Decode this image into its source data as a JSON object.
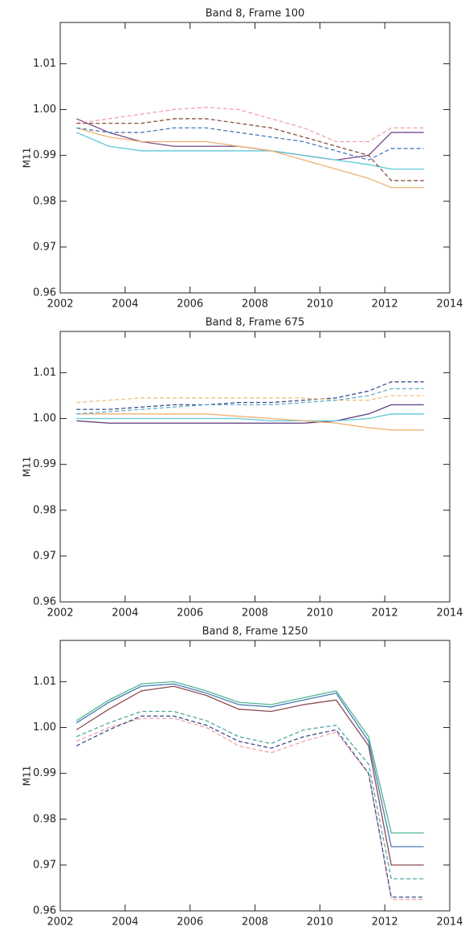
{
  "chart_data": [
    {
      "type": "line",
      "title": "Band 8, Frame  100",
      "ylabel": "M11",
      "x": [
        2002.5,
        2003.5,
        2004.5,
        2005.5,
        2006.5,
        2007.5,
        2008.5,
        2009.5,
        2010.5,
        2011.5,
        2012.2,
        2013.2
      ],
      "xlim": [
        2002,
        2014
      ],
      "xticks": [
        2002,
        2004,
        2006,
        2008,
        2010,
        2012,
        2014
      ],
      "ylim": [
        0.96,
        1.019
      ],
      "yticks": [
        0.96,
        0.97,
        0.98,
        0.99,
        {
          "value": 1.0,
          "label": "1.00"
        },
        1.01
      ],
      "series": [
        {
          "color": "#7a4a8a",
          "dashed": false,
          "values": [
            0.998,
            0.995,
            0.993,
            0.992,
            0.992,
            0.992,
            0.991,
            0.99,
            0.989,
            0.99,
            0.995,
            0.995
          ]
        },
        {
          "color": "#5ec8d8",
          "dashed": false,
          "values": [
            0.995,
            0.992,
            0.991,
            0.991,
            0.991,
            0.991,
            0.991,
            0.99,
            0.989,
            0.988,
            0.987,
            0.987
          ]
        },
        {
          "color": "#f0b070",
          "dashed": false,
          "values": [
            0.996,
            0.994,
            0.993,
            0.993,
            0.993,
            0.992,
            0.991,
            0.989,
            0.987,
            0.985,
            0.983,
            0.983
          ]
        },
        {
          "color": "#f0a0b0",
          "dashed": true,
          "values": [
            0.997,
            0.998,
            0.999,
            1.0,
            1.0005,
            1.0,
            0.998,
            0.996,
            0.993,
            0.993,
            0.996,
            0.996
          ]
        },
        {
          "color": "#8a5040",
          "dashed": true,
          "values": [
            0.997,
            0.997,
            0.997,
            0.998,
            0.998,
            0.997,
            0.996,
            0.994,
            0.992,
            0.99,
            0.9845,
            0.9845
          ]
        },
        {
          "color": "#4a7ab8",
          "dashed": true,
          "values": [
            0.996,
            0.995,
            0.995,
            0.996,
            0.996,
            0.995,
            0.994,
            0.993,
            0.991,
            0.989,
            0.9915,
            0.9915
          ]
        }
      ]
    },
    {
      "type": "line",
      "title": "Band 8, Frame  675",
      "ylabel": "M11",
      "x": [
        2002.5,
        2003.5,
        2004.5,
        2005.5,
        2006.5,
        2007.5,
        2008.5,
        2009.5,
        2010.5,
        2011.5,
        2012.2,
        2013.2
      ],
      "xlim": [
        2002,
        2014
      ],
      "xticks": [
        2002,
        2004,
        2006,
        2008,
        2010,
        2012,
        2014
      ],
      "ylim": [
        0.96,
        1.019
      ],
      "yticks": [
        0.96,
        0.97,
        0.98,
        0.99,
        {
          "value": 1.0,
          "label": "1.00"
        },
        1.01
      ],
      "series": [
        {
          "color": "#5a3a7a",
          "dashed": false,
          "values": [
            0.9995,
            0.999,
            0.999,
            0.999,
            0.999,
            0.999,
            0.999,
            0.999,
            0.9995,
            1.001,
            1.003,
            1.003
          ]
        },
        {
          "color": "#5ec8d8",
          "dashed": false,
          "values": [
            1.0,
            1.0,
            1.0,
            1.0,
            1.0,
            1.0,
            0.9995,
            0.9995,
            0.9995,
            1.0,
            1.001,
            1.001
          ]
        },
        {
          "color": "#f0b070",
          "dashed": false,
          "values": [
            1.001,
            1.001,
            1.001,
            1.001,
            1.001,
            1.0005,
            1.0,
            0.9995,
            0.999,
            0.998,
            0.9975,
            0.9975
          ]
        },
        {
          "color": "#3a4a8a",
          "dashed": true,
          "values": [
            1.002,
            1.002,
            1.0025,
            1.003,
            1.003,
            1.0035,
            1.0035,
            1.004,
            1.0045,
            1.006,
            1.008,
            1.008
          ]
        },
        {
          "color": "#f0c080",
          "dashed": true,
          "values": [
            1.0035,
            1.004,
            1.0045,
            1.0045,
            1.0045,
            1.0045,
            1.0045,
            1.0045,
            1.004,
            1.004,
            1.005,
            1.005
          ]
        },
        {
          "color": "#60b0c8",
          "dashed": true,
          "values": [
            1.001,
            1.0015,
            1.002,
            1.0025,
            1.003,
            1.003,
            1.003,
            1.0035,
            1.004,
            1.005,
            1.0065,
            1.0065
          ]
        }
      ]
    },
    {
      "type": "line",
      "title": "Band 8, Frame  1250",
      "ylabel": "M11",
      "x": [
        2002.5,
        2003.5,
        2004.5,
        2005.5,
        2006.5,
        2007.5,
        2008.5,
        2009.5,
        2010.5,
        2011.5,
        2012.2,
        2013.2
      ],
      "xlim": [
        2002,
        2014
      ],
      "xticks": [
        2002,
        2004,
        2006,
        2008,
        2010,
        2012,
        2014
      ],
      "ylim": [
        0.96,
        1.019
      ],
      "yticks": [
        0.96,
        0.97,
        0.98,
        0.99,
        {
          "value": 1.0,
          "label": "1.00"
        },
        1.01
      ],
      "series": [
        {
          "color": "#50b890",
          "dashed": false,
          "values": [
            1.0015,
            1.006,
            1.0095,
            1.01,
            1.008,
            1.0055,
            1.005,
            1.0065,
            1.008,
            0.998,
            0.977,
            0.977
          ]
        },
        {
          "color": "#4a7ab8",
          "dashed": false,
          "values": [
            1.001,
            1.0055,
            1.009,
            1.0095,
            1.0075,
            1.005,
            1.0045,
            1.006,
            1.0075,
            0.997,
            0.974,
            0.974
          ]
        },
        {
          "color": "#8a4a50",
          "dashed": false,
          "values": [
            0.9995,
            1.004,
            1.008,
            1.009,
            1.007,
            1.004,
            1.0035,
            1.005,
            1.006,
            0.996,
            0.97,
            0.97
          ]
        },
        {
          "color": "#f0a0a8",
          "dashed": true,
          "values": [
            0.997,
            1.0,
            1.002,
            1.002,
            1.0,
            0.996,
            0.9945,
            0.997,
            0.999,
            0.99,
            0.9625,
            0.9625
          ]
        },
        {
          "color": "#3a4a8a",
          "dashed": true,
          "values": [
            0.996,
            0.9995,
            1.0025,
            1.0025,
            1.0005,
            0.997,
            0.9955,
            0.998,
            0.9995,
            0.99,
            0.963,
            0.963
          ]
        },
        {
          "color": "#50a8a0",
          "dashed": true,
          "values": [
            0.998,
            1.001,
            1.0035,
            1.0035,
            1.0015,
            0.998,
            0.9965,
            0.9995,
            1.0005,
            0.992,
            0.967,
            0.967
          ]
        }
      ]
    }
  ]
}
